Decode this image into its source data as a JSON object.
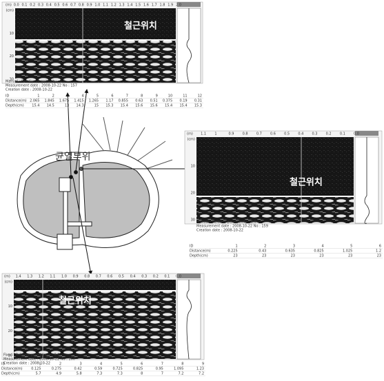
{
  "panels": [
    {
      "label": "철근위치",
      "scale": [
        "(m)",
        "0.0",
        "0.1",
        "0.2",
        "0.3",
        "0.4",
        "0.5",
        "0.6",
        "0.7",
        "0.8",
        "0.9",
        "1.0",
        "1.1",
        "1.2",
        "1.3",
        "1.4",
        "1.5",
        "1.6",
        "1.7",
        "1.8",
        "1.9",
        "2.0"
      ],
      "depth": [
        "(cm)",
        "10",
        "20",
        "30"
      ],
      "notes": [
        "Manual : Relative permittivity : 8.0",
        "Measurement date : 2008-10-22 No : 157",
        "Creation date : 2008-10-22"
      ],
      "table": [
        [
          "ID",
          1,
          2,
          3,
          4,
          5,
          6,
          7,
          8,
          9,
          10,
          11,
          12
        ],
        [
          "Distance(m)",
          2.065,
          1.845,
          1.675,
          1.415,
          1.265,
          1.17,
          0.855,
          0.63,
          0.51,
          0.375,
          0.19,
          0.31
        ],
        [
          "Depth(cm)",
          15.4,
          14.5,
          13,
          14.3,
          15,
          15.3,
          15.4,
          15.6,
          15.6,
          15.4,
          15.4,
          15.3
        ]
      ]
    },
    {
      "label": "철근위치",
      "scale": [
        "(m)",
        "1.1",
        "1",
        "0.9",
        "0.8",
        "0.7",
        "0.6",
        "0.5",
        "0.4",
        "0.3",
        "0.2",
        "0.1",
        "0.0"
      ],
      "depth": [
        "(cm)",
        "10",
        "20",
        "30"
      ],
      "notes": [
        "Manual : Relative permittivity : 8.0",
        "Measurement date : 2008-10-22 No : 159",
        "Creation date : 2008-10-22"
      ],
      "table": [
        [
          "ID",
          1,
          2,
          3,
          4,
          5,
          6
        ],
        [
          "Distance(m)",
          0.225,
          0.43,
          0.635,
          0.825,
          1.025,
          1.2
        ],
        [
          "Depth(cm)",
          23,
          23,
          23,
          23,
          23,
          23
        ]
      ]
    },
    {
      "label": "철근위치",
      "scale": [
        "(m)",
        "1.4",
        "1.3",
        "1.2",
        "1.1",
        "1.0",
        "0.9",
        "0.8",
        "0.7",
        "0.6",
        "0.5",
        "0.4",
        "0.3",
        "0.2",
        "0.1",
        "0.0"
      ],
      "depth": [
        "(cm)",
        "10",
        "20",
        "30"
      ],
      "notes": [
        "Fixed : Relative permittivity : 8.0",
        "Measurement date : 2008-10-22 No : 160",
        "Creation date : 2008-10-22"
      ],
      "table": [
        [
          "ID",
          1,
          2,
          3,
          4,
          5,
          6,
          7,
          8,
          9
        ],
        [
          "Distance(m)",
          0.125,
          0.275,
          0.42,
          0.59,
          0.725,
          0.825,
          0.95,
          1.095,
          1.23
        ],
        [
          "Depth(cm)",
          5.7,
          4.9,
          5.8,
          7.3,
          7.3,
          8,
          7,
          7.2,
          7.2
        ]
      ]
    }
  ],
  "diagram": {
    "label": "균열부위"
  }
}
